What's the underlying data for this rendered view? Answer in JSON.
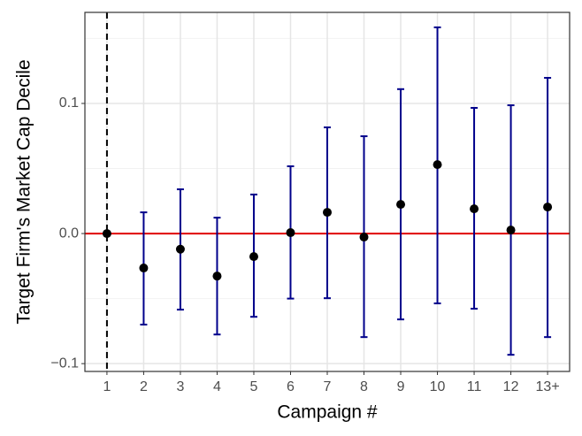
{
  "chart_data": {
    "type": "errorbar",
    "x_label": "Campaign #",
    "y_label": "Target Firm's Market Cap Decile",
    "categories": [
      "1",
      "2",
      "3",
      "4",
      "5",
      "6",
      "7",
      "8",
      "9",
      "10",
      "11",
      "12",
      "13+"
    ],
    "values": [
      0,
      -0.0265,
      -0.012,
      -0.0327,
      -0.0177,
      0.0007,
      0.0163,
      -0.0027,
      0.0224,
      0.053,
      0.019,
      0.0027,
      0.0204
    ],
    "lower": [
      null,
      -0.07,
      -0.0585,
      -0.0776,
      -0.064,
      -0.05,
      -0.0497,
      -0.0796,
      -0.066,
      -0.0537,
      -0.0578,
      -0.0932,
      -0.0796
    ],
    "upper": [
      null,
      0.0163,
      0.034,
      0.0122,
      0.03,
      0.0517,
      0.0816,
      0.0748,
      0.111,
      0.1585,
      0.0966,
      0.0986,
      0.1197
    ],
    "point_color": "#000000",
    "bar_color": "#00008b",
    "ylim": [
      -0.106,
      0.17
    ],
    "yticks": [
      {
        "value": -0.1,
        "label": "−0.1"
      },
      {
        "value": 0,
        "label": "0.0"
      },
      {
        "value": 0.1,
        "label": "0.1"
      }
    ],
    "minor_yticks": [
      -0.05,
      0.05,
      0.15
    ],
    "hline": 0,
    "hline_color": "#e00000",
    "vline_index": 0,
    "grid": true
  }
}
